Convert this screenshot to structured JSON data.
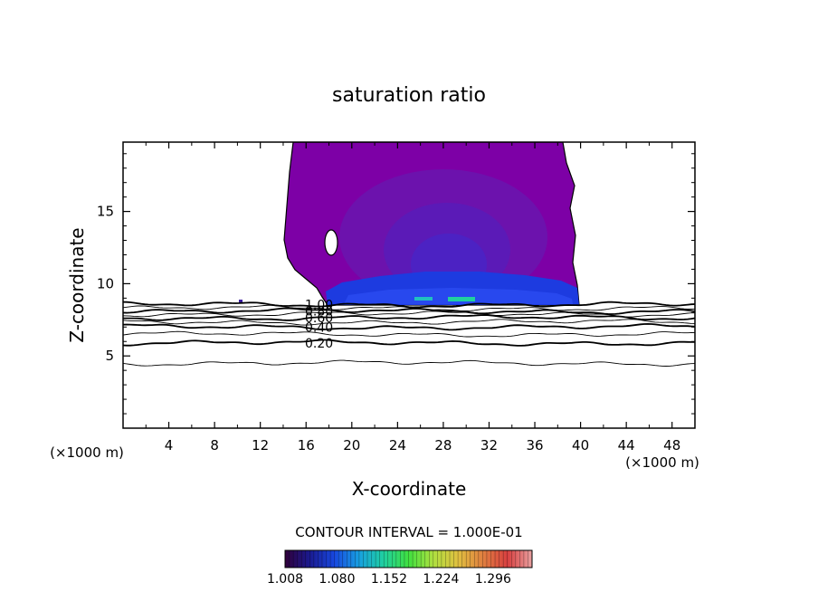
{
  "chart_data": {
    "type": "contour",
    "title": "saturation ratio",
    "xlabel": "X-coordinate",
    "ylabel": "Z-coordinate",
    "x_unit_label": "(×1000 m)",
    "y_unit_label": "(×1000 m)",
    "xlim": [
      0,
      50
    ],
    "ylim": [
      0,
      19.8
    ],
    "x_ticks": [
      4,
      8,
      12,
      16,
      20,
      24,
      28,
      32,
      36,
      40,
      44,
      48
    ],
    "y_ticks": [
      5,
      10,
      15
    ],
    "contour_interval_text": "CONTOUR INTERVAL = 1.000E-01",
    "contour_lines": [
      {
        "level": 0.1,
        "z": 4.5
      },
      {
        "level": 0.2,
        "z": 5.9,
        "label": "0.20"
      },
      {
        "level": 0.3,
        "z": 6.5
      },
      {
        "level": 0.4,
        "z": 7.0,
        "label": "0.40"
      },
      {
        "level": 0.5,
        "z": 7.35
      },
      {
        "level": 0.6,
        "z": 7.65,
        "label": "0.60"
      },
      {
        "level": 0.7,
        "z": 7.9
      },
      {
        "level": 0.8,
        "z": 8.1,
        "label": "0.80"
      },
      {
        "level": 0.9,
        "z": 8.3
      },
      {
        "level": 1.0,
        "z": 8.55,
        "label": "1.00"
      }
    ],
    "supersaturated_region": {
      "x_range": [
        14.8,
        39.7
      ],
      "z_range": [
        8.6,
        19.8
      ]
    },
    "colorbar": {
      "min": 1.008,
      "max": 1.35,
      "ticks": [
        "1.008",
        "1.080",
        "1.152",
        "1.224",
        "1.296"
      ],
      "colors": [
        "#30003a",
        "#1a1a90",
        "#1848e0",
        "#18a0e0",
        "#20d0a0",
        "#40e040",
        "#b0e040",
        "#e0c040",
        "#e08040",
        "#d84040",
        "#e8a0a0"
      ]
    }
  }
}
